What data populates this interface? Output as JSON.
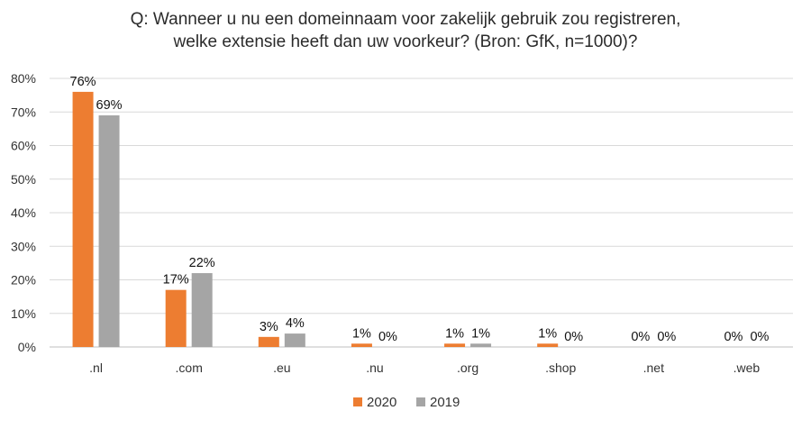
{
  "chart_data": {
    "type": "bar",
    "title_lines": [
      "Q: Wanneer u nu een domeinnaam voor zakelijk gebruik zou registreren,",
      "welke extensie heeft dan uw voorkeur? (Bron: GfK, n=1000)?"
    ],
    "categories": [
      ".nl",
      ".com",
      ".eu",
      ".nu",
      ".org",
      ".shop",
      ".net",
      ".web"
    ],
    "series": [
      {
        "name": "2020",
        "color": "#ed7d31",
        "values": [
          76,
          17,
          3,
          1,
          1,
          1,
          0,
          0
        ],
        "labels": [
          "76%",
          "17%",
          "3%",
          "1%",
          "1%",
          "1%",
          "0%",
          "0%"
        ]
      },
      {
        "name": "2019",
        "color": "#a5a5a5",
        "values": [
          69,
          22,
          4,
          0,
          1,
          0,
          0,
          0
        ],
        "labels": [
          "69%",
          "22%",
          "4%",
          "0%",
          "1%",
          "0%",
          "0%",
          "0%"
        ]
      }
    ],
    "yticks": [
      "0%",
      "10%",
      "20%",
      "30%",
      "40%",
      "50%",
      "60%",
      "70%",
      "80%"
    ],
    "ylim": [
      0,
      80
    ],
    "xlabel": "",
    "ylabel": "",
    "legend_position": "bottom",
    "grid": true
  }
}
